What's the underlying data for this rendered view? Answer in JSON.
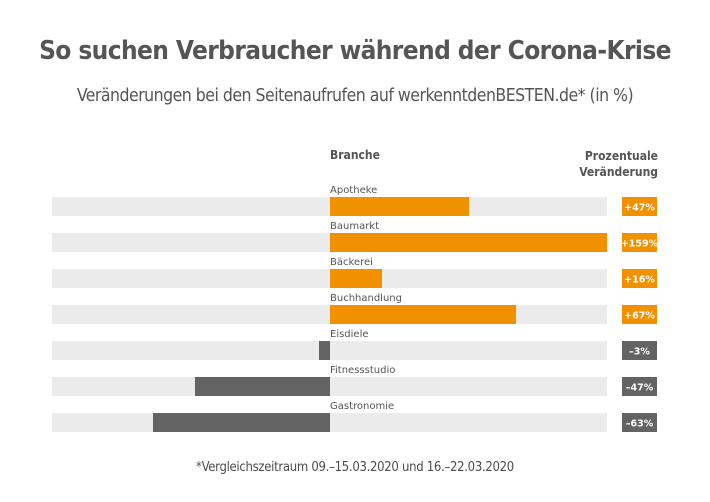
{
  "chart_data": {
    "type": "bar",
    "orientation": "horizontal",
    "title": "So suchen Verbraucher während der Corona-Krise",
    "subtitle": "Veränderungen bei den Seitenaufrufen auf werkenntdenBESTEN.de* (in %)",
    "category_header": "Branche",
    "value_header_line1": "Prozentuale",
    "value_header_line2": "Veränderung",
    "categories": [
      "Apotheke",
      "Baumarkt",
      "Bäckerei",
      "Buchhandlung",
      "Eisdiele",
      "Fitnessstudio",
      "Gastronomie"
    ],
    "values": [
      47,
      159,
      16,
      67,
      -3,
      -47,
      -63
    ],
    "value_labels": [
      "+47%",
      "+159%",
      "+16%",
      "+67%",
      "–3%",
      "–47%",
      "–63%"
    ],
    "xlabel": "",
    "ylabel": "",
    "grid": false,
    "legend": "none",
    "footnote": "*Vergleichszeitraum 09.–15.03.2020 und 16.–22.03.2020"
  },
  "colors": {
    "positive": "#f29100",
    "negative": "#636363",
    "track": "#ebebeb",
    "text": "#555555"
  }
}
